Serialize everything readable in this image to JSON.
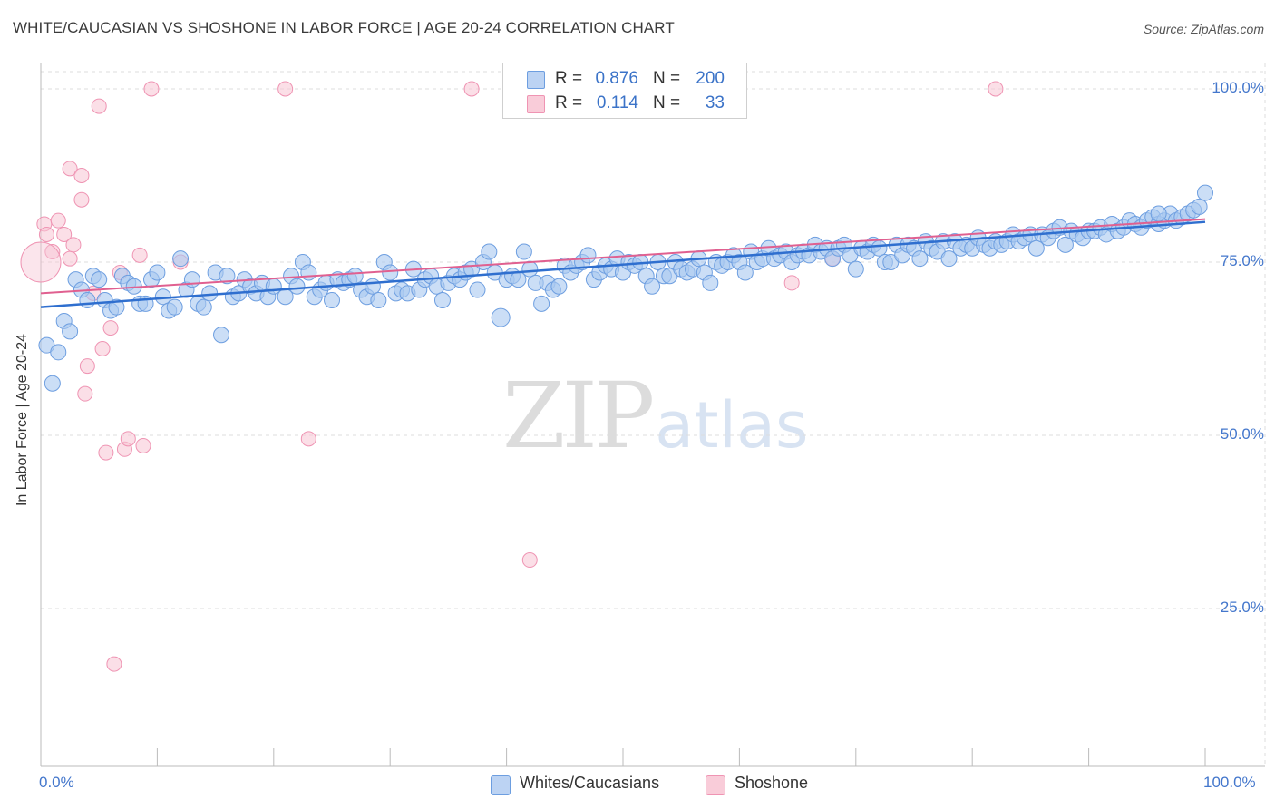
{
  "title": "WHITE/CAUCASIAN VS SHOSHONE IN LABOR FORCE | AGE 20-24 CORRELATION CHART",
  "source": "Source: ZipAtlas.com",
  "watermark": {
    "zip": "ZIP",
    "atlas": "atlas"
  },
  "colors": {
    "blue_fill": "#a9c8f0",
    "blue_stroke": "#6d9ee0",
    "blue_line": "#2f6fcf",
    "pink_fill": "#f7c5d4",
    "pink_stroke": "#ef94b3",
    "pink_line": "#e06090",
    "grid": "#dddddd",
    "tick_label": "#4477cc"
  },
  "legend": {
    "rows": [
      {
        "r_label": "R =",
        "r_value": "0.876",
        "n_label": "N =",
        "n_value": "200"
      },
      {
        "r_label": "R =",
        "r_value": "0.114",
        "n_label": "N =",
        "n_value": "33"
      }
    ]
  },
  "bottom_legend": {
    "blue": "Whites/Caucasians",
    "pink": "Shoshone"
  },
  "chart_data": {
    "type": "scatter",
    "title": "WHITE/CAUCASIAN VS SHOSHONE IN LABOR FORCE | AGE 20-24 CORRELATION CHART",
    "xlabel": "",
    "ylabel": "In Labor Force | Age 20-24",
    "xlim": [
      0,
      100
    ],
    "ylim": [
      0,
      102
    ],
    "x_ticks": [
      "0.0%",
      "100.0%"
    ],
    "y_ticks": [
      {
        "value": 100,
        "label": "100.0%"
      },
      {
        "value": 75,
        "label": "75.0%"
      },
      {
        "value": 50,
        "label": "50.0%"
      },
      {
        "value": 25,
        "label": "25.0%"
      }
    ],
    "grid": true,
    "legend_position": "top-center",
    "series": [
      {
        "name": "Whites/Caucasians",
        "R": 0.876,
        "N": 200,
        "trend": {
          "x0": 0,
          "y0": 68.5,
          "x1": 100,
          "y1": 80.8
        },
        "points": [
          [
            0.5,
            63
          ],
          [
            1.5,
            62
          ],
          [
            1,
            57.5
          ],
          [
            2,
            66.5
          ],
          [
            2.5,
            65
          ],
          [
            3,
            72.5
          ],
          [
            3.5,
            71
          ],
          [
            4,
            69.5
          ],
          [
            4.5,
            73
          ],
          [
            5,
            72.5
          ],
          [
            5.5,
            69.5
          ],
          [
            6,
            68
          ],
          [
            6.5,
            68.5
          ],
          [
            7,
            73
          ],
          [
            7.5,
            72
          ],
          [
            8,
            71.5
          ],
          [
            8.5,
            69
          ],
          [
            9,
            69
          ],
          [
            9.5,
            72.5
          ],
          [
            10,
            73.5
          ],
          [
            10.5,
            70
          ],
          [
            11,
            68
          ],
          [
            11.5,
            68.5
          ],
          [
            12,
            75.5
          ],
          [
            12.5,
            71
          ],
          [
            13,
            72.5
          ],
          [
            13.5,
            69
          ],
          [
            14,
            68.5
          ],
          [
            14.5,
            70.5
          ],
          [
            15,
            73.5
          ],
          [
            15.5,
            64.5
          ],
          [
            16,
            73
          ],
          [
            16.5,
            70
          ],
          [
            17,
            70.5
          ],
          [
            17.5,
            72.5
          ],
          [
            18,
            71.5
          ],
          [
            18.5,
            70.5
          ],
          [
            19,
            72
          ],
          [
            19.5,
            70
          ],
          [
            20,
            71.5
          ],
          [
            21,
            70
          ],
          [
            21.5,
            73
          ],
          [
            22,
            71.5
          ],
          [
            22.5,
            75
          ],
          [
            23,
            73.5
          ],
          [
            23.5,
            70
          ],
          [
            24,
            71
          ],
          [
            24.5,
            72
          ],
          [
            25,
            69.5
          ],
          [
            25.5,
            72.5
          ],
          [
            26,
            72
          ],
          [
            26.5,
            72.5
          ],
          [
            27,
            73
          ],
          [
            27.5,
            71
          ],
          [
            28,
            70
          ],
          [
            28.5,
            71.5
          ],
          [
            29,
            69.5
          ],
          [
            29.5,
            75
          ],
          [
            30,
            73.5
          ],
          [
            30.5,
            70.5
          ],
          [
            31,
            71
          ],
          [
            31.5,
            70.5
          ],
          [
            32,
            74
          ],
          [
            32.5,
            71
          ],
          [
            33,
            72.5
          ],
          [
            33.5,
            73
          ],
          [
            34,
            71.5
          ],
          [
            34.5,
            69.5
          ],
          [
            35,
            72
          ],
          [
            35.5,
            73
          ],
          [
            36,
            72.5
          ],
          [
            36.5,
            73.5
          ],
          [
            37,
            74
          ],
          [
            37.5,
            71
          ],
          [
            38,
            75
          ],
          [
            38.5,
            76.5
          ],
          [
            39,
            73.5
          ],
          [
            39.5,
            67
          ],
          [
            40,
            72.5
          ],
          [
            40.5,
            73
          ],
          [
            41,
            72.5
          ],
          [
            41.5,
            76.5
          ],
          [
            42,
            74
          ],
          [
            42.5,
            72
          ],
          [
            43,
            69
          ],
          [
            43.5,
            72
          ],
          [
            44,
            71
          ],
          [
            44.5,
            71.5
          ],
          [
            45,
            74.5
          ],
          [
            45.5,
            73.5
          ],
          [
            46,
            74.5
          ],
          [
            46.5,
            75
          ],
          [
            47,
            76
          ],
          [
            47.5,
            72.5
          ],
          [
            48,
            73.5
          ],
          [
            48.5,
            74.5
          ],
          [
            49,
            74
          ],
          [
            49.5,
            75.5
          ],
          [
            50,
            73.5
          ],
          [
            50.5,
            75
          ],
          [
            51,
            74.5
          ],
          [
            51.5,
            75
          ],
          [
            52,
            73
          ],
          [
            52.5,
            71.5
          ],
          [
            53,
            75
          ],
          [
            53.5,
            73
          ],
          [
            54,
            73
          ],
          [
            54.5,
            75
          ],
          [
            55,
            74
          ],
          [
            55.5,
            73.5
          ],
          [
            56,
            74
          ],
          [
            56.5,
            75.5
          ],
          [
            57,
            73.5
          ],
          [
            57.5,
            72
          ],
          [
            58,
            75
          ],
          [
            58.5,
            74.5
          ],
          [
            59,
            75
          ],
          [
            59.5,
            76
          ],
          [
            60,
            75
          ],
          [
            60.5,
            73.5
          ],
          [
            61,
            76.5
          ],
          [
            61.5,
            75
          ],
          [
            62,
            75.5
          ],
          [
            62.5,
            77
          ],
          [
            63,
            75.5
          ],
          [
            63.5,
            76
          ],
          [
            64,
            76.5
          ],
          [
            64.5,
            75
          ],
          [
            65,
            76
          ],
          [
            65.5,
            76.5
          ],
          [
            66,
            76
          ],
          [
            66.5,
            77.5
          ],
          [
            67,
            76.5
          ],
          [
            67.5,
            77
          ],
          [
            68,
            75.5
          ],
          [
            68.5,
            77
          ],
          [
            69,
            77.5
          ],
          [
            69.5,
            76
          ],
          [
            70,
            74
          ],
          [
            70.5,
            77
          ],
          [
            71,
            76.5
          ],
          [
            71.5,
            77.5
          ],
          [
            72,
            77
          ],
          [
            72.5,
            75
          ],
          [
            73,
            75
          ],
          [
            73.5,
            77.5
          ],
          [
            74,
            76
          ],
          [
            74.5,
            77.5
          ],
          [
            75,
            77
          ],
          [
            75.5,
            75.5
          ],
          [
            76,
            78
          ],
          [
            76.5,
            77
          ],
          [
            77,
            76.5
          ],
          [
            77.5,
            78
          ],
          [
            78,
            75.5
          ],
          [
            78.5,
            78
          ],
          [
            79,
            77
          ],
          [
            79.5,
            77.5
          ],
          [
            80,
            77
          ],
          [
            80.5,
            78.5
          ],
          [
            81,
            77.5
          ],
          [
            81.5,
            77
          ],
          [
            82,
            78
          ],
          [
            82.5,
            77.5
          ],
          [
            83,
            78
          ],
          [
            83.5,
            79
          ],
          [
            84,
            78
          ],
          [
            84.5,
            78.5
          ],
          [
            85,
            79
          ],
          [
            85.5,
            77
          ],
          [
            86,
            79
          ],
          [
            86.5,
            78.5
          ],
          [
            87,
            79.5
          ],
          [
            87.5,
            80
          ],
          [
            88,
            77.5
          ],
          [
            88.5,
            79.5
          ],
          [
            89,
            79
          ],
          [
            89.5,
            78.5
          ],
          [
            90,
            79.5
          ],
          [
            90.5,
            79.5
          ],
          [
            91,
            80
          ],
          [
            91.5,
            79
          ],
          [
            92,
            80.5
          ],
          [
            92.5,
            79.5
          ],
          [
            93,
            80
          ],
          [
            93.5,
            81
          ],
          [
            94,
            80.5
          ],
          [
            94.5,
            80
          ],
          [
            95,
            81
          ],
          [
            95.5,
            81.5
          ],
          [
            96,
            80.5
          ],
          [
            96.5,
            81
          ],
          [
            97,
            82
          ],
          [
            97.5,
            81
          ],
          [
            98,
            81.5
          ],
          [
            98.5,
            82
          ],
          [
            99,
            82.5
          ],
          [
            99.5,
            83
          ],
          [
            100,
            85
          ],
          [
            96,
            82
          ]
        ]
      },
      {
        "name": "Shoshone",
        "R": 0.114,
        "N": 33,
        "trend": {
          "x0": 0,
          "y0": 70.5,
          "x1": 100,
          "y1": 81.2
        },
        "points": [
          [
            0.3,
            80.5
          ],
          [
            0.5,
            79
          ],
          [
            1,
            76.5
          ],
          [
            1.5,
            81
          ],
          [
            2,
            79
          ],
          [
            2.5,
            88.5
          ],
          [
            2.5,
            75.5
          ],
          [
            2.8,
            77.5
          ],
          [
            3.5,
            87.5
          ],
          [
            3.5,
            84
          ],
          [
            3.8,
            56
          ],
          [
            4,
            60
          ],
          [
            4.5,
            70.5
          ],
          [
            5,
            97.5
          ],
          [
            5.3,
            62.5
          ],
          [
            5.6,
            47.5
          ],
          [
            6,
            65.5
          ],
          [
            6.3,
            17
          ],
          [
            6.8,
            73.5
          ],
          [
            7.2,
            48
          ],
          [
            7.5,
            49.5
          ],
          [
            8.5,
            76
          ],
          [
            8.8,
            48.5
          ],
          [
            9.5,
            100
          ],
          [
            12,
            75
          ],
          [
            21,
            100
          ],
          [
            23,
            49.5
          ],
          [
            37,
            100
          ],
          [
            42,
            32
          ],
          [
            64.5,
            72
          ],
          [
            68,
            75.5
          ],
          [
            82,
            100
          ],
          [
            0,
            75
          ]
        ]
      }
    ]
  }
}
